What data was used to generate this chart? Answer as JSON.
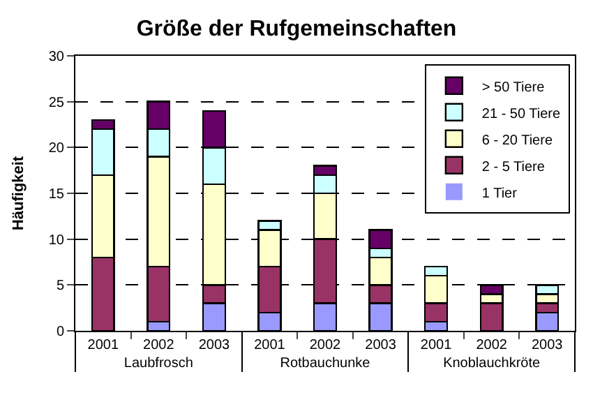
{
  "chart_data": {
    "type": "bar",
    "title": "Größe der Rufgemeinschaften",
    "ylabel": "Häufigkeit",
    "categories": [
      "2001",
      "2002",
      "2003",
      "2001",
      "2002",
      "2003",
      "2001",
      "2002",
      "2003"
    ],
    "annotations": [
      "Laubfrosch",
      "Rotbauchunke",
      "Knoblauchkröte"
    ],
    "stacked": true,
    "series": [
      {
        "name": "1 Tier",
        "color": "#9999ff",
        "values": [
          0,
          1,
          3,
          2,
          3,
          3,
          1,
          0,
          2
        ]
      },
      {
        "name": "2 - 5 Tiere",
        "color": "#993366",
        "values": [
          8,
          6,
          2,
          5,
          7,
          2,
          2,
          3,
          1
        ]
      },
      {
        "name": "6 - 20 Tiere",
        "color": "#ffffcc",
        "values": [
          9,
          12,
          11,
          4,
          5,
          3,
          3,
          1,
          1
        ]
      },
      {
        "name": "21 - 50 Tiere",
        "color": "#ccffff",
        "values": [
          5,
          3,
          4,
          1,
          2,
          1,
          1,
          0,
          1
        ]
      },
      {
        "name": "> 50 Tiere",
        "color": "#660066",
        "values": [
          1,
          3,
          4,
          0,
          1,
          2,
          0,
          1,
          0
        ]
      }
    ],
    "ylim": [
      0,
      30
    ],
    "yticks": [
      0,
      5,
      10,
      15,
      20,
      25,
      30
    ],
    "grid": "y",
    "legend": "top right"
  }
}
